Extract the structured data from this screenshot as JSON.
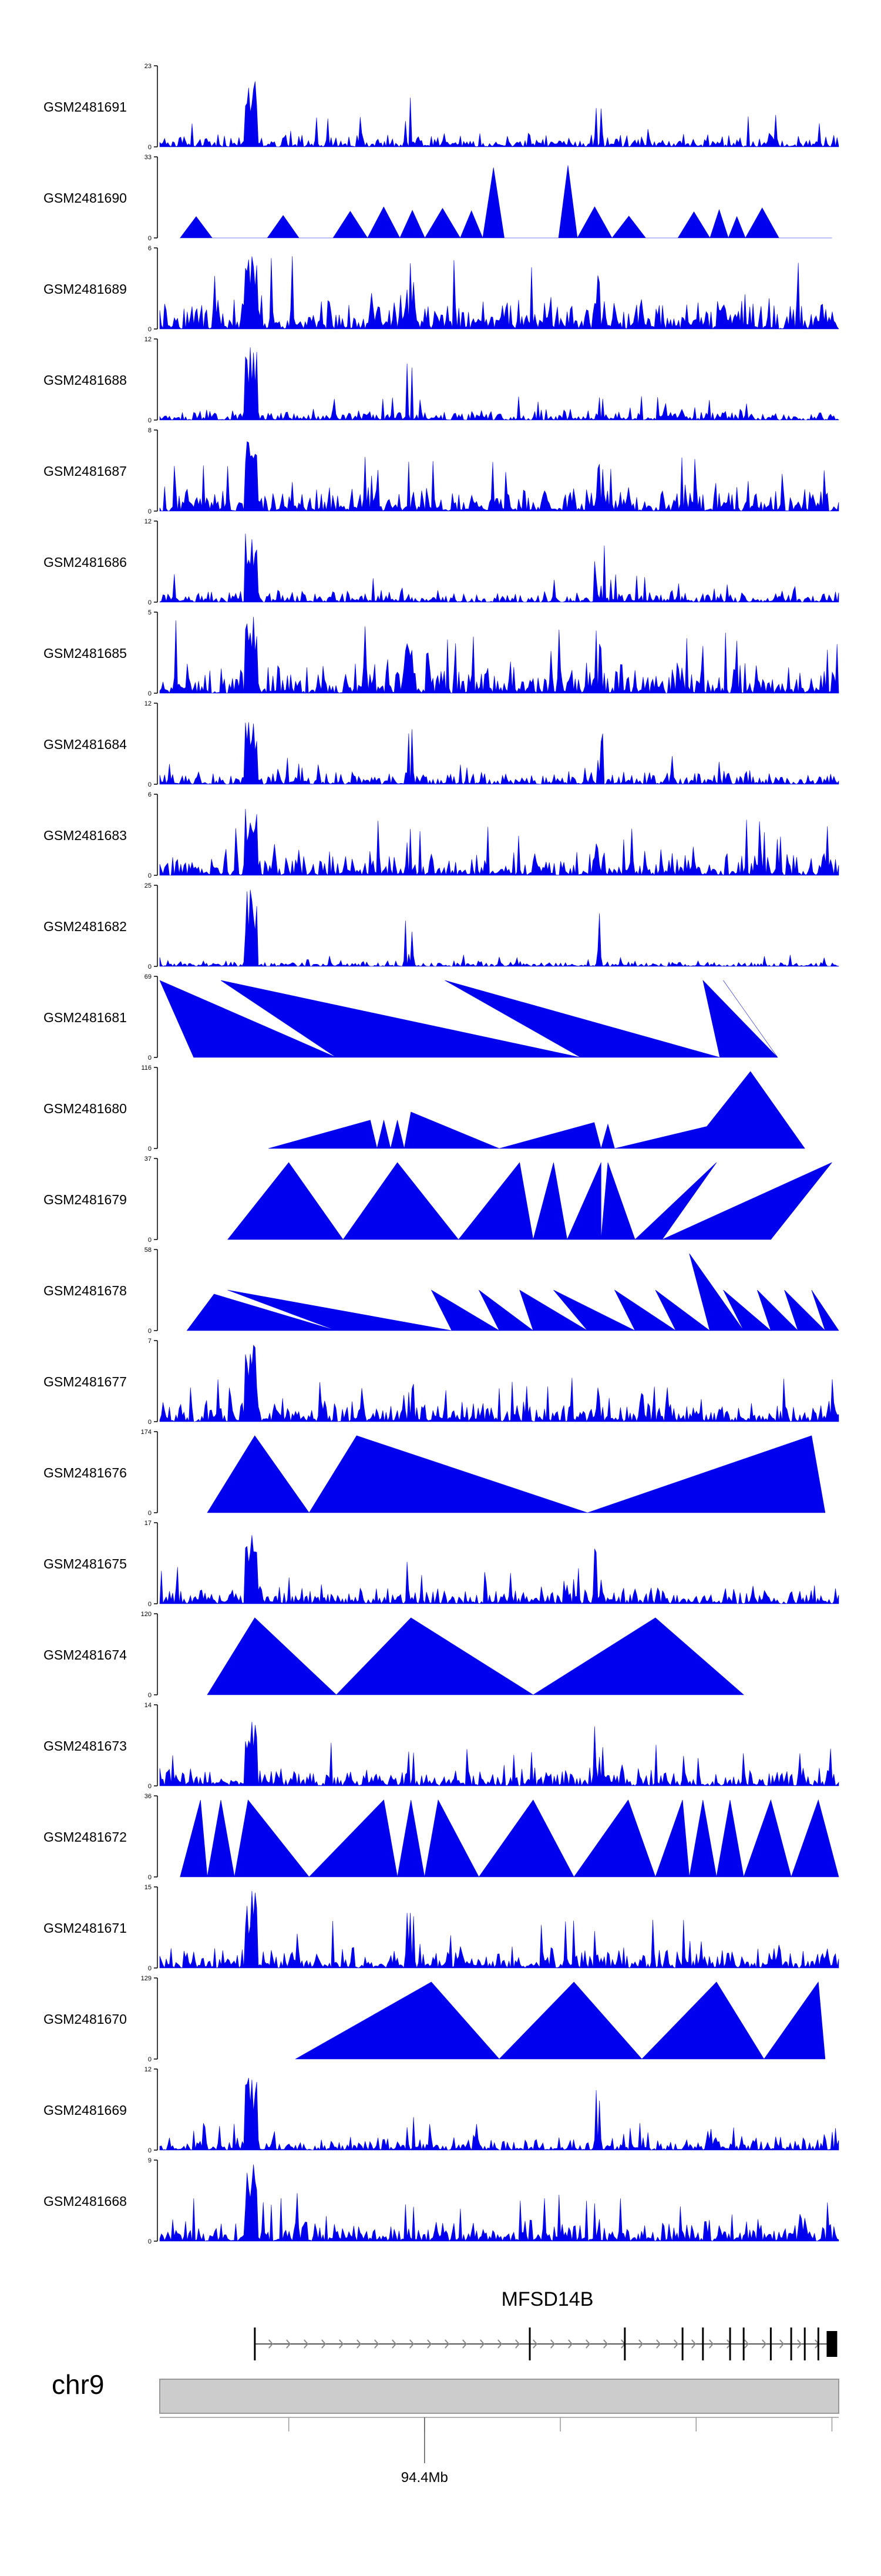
{
  "chart_data": {
    "type": "area",
    "title": "",
    "fill_color": "#0000ee",
    "axis_color": "#000000",
    "tracks": [
      {
        "name": "GSM2481691",
        "ymax": "23",
        "ymin": "0",
        "pattern": "dense",
        "peak_bias": 0.4,
        "seed": 11
      },
      {
        "name": "GSM2481690",
        "ymax": "33",
        "ymin": "0",
        "pattern": "sparse",
        "seed": 12
      },
      {
        "name": "GSM2481689",
        "ymax": "6",
        "ymin": "0",
        "pattern": "dense",
        "peak_bias": 0.9,
        "seed": 13
      },
      {
        "name": "GSM2481688",
        "ymax": "12",
        "ymin": "0",
        "pattern": "dense",
        "peak_bias": 0.3,
        "seed": 14
      },
      {
        "name": "GSM2481687",
        "ymax": "8",
        "ymin": "0",
        "pattern": "dense",
        "peak_bias": 0.7,
        "seed": 15
      },
      {
        "name": "GSM2481686",
        "ymax": "12",
        "ymin": "0",
        "pattern": "dense",
        "peak_bias": 0.35,
        "seed": 16
      },
      {
        "name": "GSM2481685",
        "ymax": "5",
        "ymin": "0",
        "pattern": "dense",
        "peak_bias": 0.9,
        "seed": 17
      },
      {
        "name": "GSM2481684",
        "ymax": "12",
        "ymin": "0",
        "pattern": "dense",
        "peak_bias": 0.35,
        "seed": 18
      },
      {
        "name": "GSM2481683",
        "ymax": "6",
        "ymin": "0",
        "pattern": "dense",
        "peak_bias": 0.7,
        "seed": 19
      },
      {
        "name": "GSM2481682",
        "ymax": "25",
        "ymin": "0",
        "pattern": "dense",
        "peak_bias": 0.15,
        "seed": 20
      },
      {
        "name": "GSM2481681",
        "ymax": "69",
        "ymin": "0",
        "pattern": "triangles",
        "peaks": [
          [
            0.0,
            0.95
          ],
          [
            0.09,
            0.95
          ],
          [
            0.42,
            0.95
          ],
          [
            0.8,
            0.95
          ],
          [
            0.83,
            0.95
          ]
        ],
        "gaps": [
          0.05,
          0.26,
          0.62,
          0.825,
          0.91
        ]
      },
      {
        "name": "GSM2481680",
        "ymax": "116",
        "ymin": "0",
        "pattern": "triangles",
        "peaks": [
          [
            0.31,
            0.35
          ],
          [
            0.33,
            0.35
          ],
          [
            0.35,
            0.35
          ],
          [
            0.37,
            0.45
          ],
          [
            0.64,
            0.32
          ],
          [
            0.66,
            0.3
          ],
          [
            0.87,
            0.4
          ],
          [
            0.87,
            0.95
          ]
        ],
        "gaps": [
          0.16,
          0.32,
          0.34,
          0.36,
          0.5,
          0.65,
          0.67,
          0.78,
          0.95
        ]
      },
      {
        "name": "GSM2481679",
        "ymax": "37",
        "ymin": "0",
        "pattern": "triangles",
        "peaks": [
          [
            0.19,
            0.95
          ],
          [
            0.35,
            0.95
          ],
          [
            0.53,
            0.95
          ],
          [
            0.58,
            0.95
          ],
          [
            0.65,
            0.95
          ],
          [
            0.66,
            0.95
          ],
          [
            0.82,
            0.95
          ],
          [
            0.99,
            0.95
          ]
        ],
        "gaps": [
          0.1,
          0.27,
          0.44,
          0.55,
          0.6,
          0.65,
          0.7,
          0.74,
          0.9,
          0.99
        ]
      },
      {
        "name": "GSM2481678",
        "ymax": "58",
        "ymin": "0",
        "pattern": "triangles",
        "peaks": [
          [
            0.08,
            0.45
          ],
          [
            0.1,
            0.5
          ],
          [
            0.4,
            0.5
          ],
          [
            0.47,
            0.5
          ],
          [
            0.53,
            0.5
          ],
          [
            0.58,
            0.5
          ],
          [
            0.67,
            0.5
          ],
          [
            0.73,
            0.5
          ],
          [
            0.78,
            0.95
          ],
          [
            0.83,
            0.5
          ],
          [
            0.88,
            0.5
          ],
          [
            0.92,
            0.5
          ],
          [
            0.96,
            0.5
          ]
        ],
        "gaps": [
          0.04,
          0.26,
          0.43,
          0.5,
          0.55,
          0.63,
          0.7,
          0.76,
          0.81,
          0.86,
          0.9,
          0.94,
          0.98,
          1.0
        ]
      },
      {
        "name": "GSM2481677",
        "ymax": "7",
        "ymin": "0",
        "pattern": "dense",
        "peak_bias": 0.6,
        "seed": 21
      },
      {
        "name": "GSM2481676",
        "ymax": "174",
        "ymin": "0",
        "pattern": "triangles",
        "peaks": [
          [
            0.14,
            0.95
          ],
          [
            0.29,
            0.95
          ],
          [
            0.96,
            0.95
          ]
        ],
        "gaps": [
          0.07,
          0.22,
          0.63,
          0.98
        ]
      },
      {
        "name": "GSM2481675",
        "ymax": "17",
        "ymin": "0",
        "pattern": "dense",
        "peak_bias": 0.5,
        "seed": 22
      },
      {
        "name": "GSM2481674",
        "ymax": "120",
        "ymin": "0",
        "pattern": "triangles",
        "peaks": [
          [
            0.14,
            0.95
          ],
          [
            0.37,
            0.95
          ],
          [
            0.73,
            0.95
          ]
        ],
        "gaps": [
          0.07,
          0.26,
          0.55,
          0.86
        ]
      },
      {
        "name": "GSM2481673",
        "ymax": "14",
        "ymin": "0",
        "pattern": "dense",
        "peak_bias": 0.55,
        "seed": 23
      },
      {
        "name": "GSM2481672",
        "ymax": "36",
        "ymin": "0",
        "pattern": "triangles",
        "peaks": [
          [
            0.06,
            0.95
          ],
          [
            0.09,
            0.95
          ],
          [
            0.13,
            0.95
          ],
          [
            0.33,
            0.95
          ],
          [
            0.37,
            0.95
          ],
          [
            0.41,
            0.95
          ],
          [
            0.55,
            0.95
          ],
          [
            0.69,
            0.95
          ],
          [
            0.77,
            0.95
          ],
          [
            0.8,
            0.95
          ],
          [
            0.84,
            0.95
          ],
          [
            0.9,
            0.95
          ],
          [
            0.97,
            0.95
          ]
        ],
        "gaps": [
          0.03,
          0.07,
          0.11,
          0.22,
          0.35,
          0.39,
          0.47,
          0.61,
          0.73,
          0.78,
          0.82,
          0.86,
          0.93,
          1.0
        ]
      },
      {
        "name": "GSM2481671",
        "ymax": "15",
        "ymin": "0",
        "pattern": "dense",
        "peak_bias": 0.6,
        "seed": 24
      },
      {
        "name": "GSM2481670",
        "ymax": "129",
        "ymin": "0",
        "pattern": "triangles",
        "peaks": [
          [
            0.4,
            0.95
          ],
          [
            0.61,
            0.95
          ],
          [
            0.82,
            0.95
          ],
          [
            0.97,
            0.95
          ]
        ],
        "gaps": [
          0.2,
          0.5,
          0.71,
          0.89,
          0.98
        ]
      },
      {
        "name": "GSM2481669",
        "ymax": "12",
        "ymin": "0",
        "pattern": "dense",
        "peak_bias": 0.35,
        "seed": 25
      },
      {
        "name": "GSM2481668",
        "ymax": "9",
        "ymin": "0",
        "pattern": "dense",
        "peak_bias": 0.6,
        "seed": 26
      }
    ],
    "gene": {
      "name": "MFSD14B",
      "strand": "+",
      "exons": [
        0.14,
        0.545,
        0.685,
        0.77,
        0.8,
        0.84,
        0.86,
        0.9,
        0.93,
        0.95,
        0.97,
        0.99
      ]
    },
    "chromosome": {
      "name": "chr9",
      "ticks": [
        0.19,
        0.39,
        0.59,
        0.79,
        0.99
      ],
      "labeled_tick": {
        "position": 0.39,
        "label": "94.4Mb"
      }
    }
  }
}
